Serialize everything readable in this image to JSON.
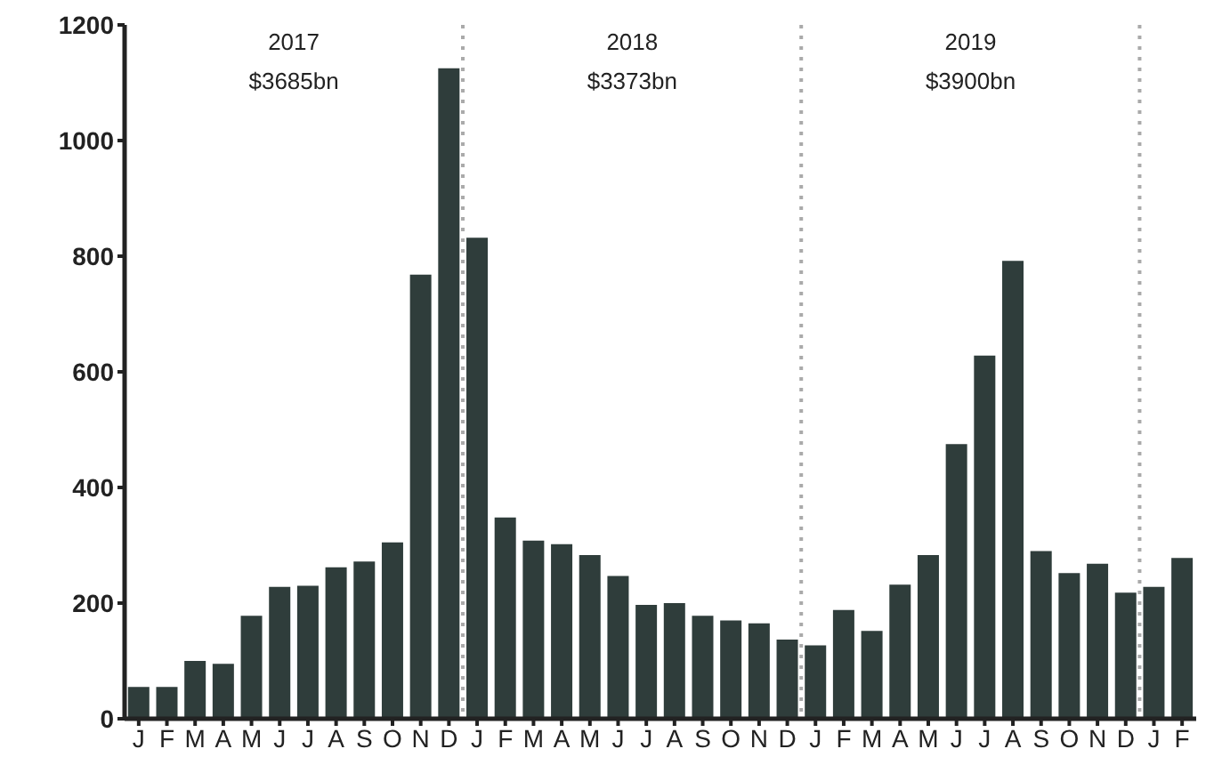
{
  "chart_data": {
    "type": "bar",
    "annotations": [
      "2017",
      "$3685bn",
      "2018",
      "$3373bn",
      "2019",
      "$3900bn"
    ],
    "categories": [
      "J",
      "F",
      "M",
      "A",
      "M",
      "J",
      "J",
      "A",
      "S",
      "O",
      "N",
      "D",
      "J",
      "F",
      "M",
      "A",
      "M",
      "J",
      "J",
      "A",
      "S",
      "O",
      "N",
      "D",
      "J",
      "F",
      "M",
      "A",
      "M",
      "J",
      "J",
      "A",
      "S",
      "O",
      "N",
      "D",
      "J",
      "F"
    ],
    "values": [
      55,
      55,
      100,
      95,
      178,
      228,
      230,
      262,
      272,
      305,
      768,
      1125,
      832,
      348,
      308,
      302,
      283,
      247,
      197,
      200,
      178,
      170,
      165,
      137,
      127,
      188,
      152,
      232,
      283,
      475,
      628,
      792,
      290,
      252,
      268,
      218,
      228,
      278
    ],
    "color": "#2f3d3b",
    "ylim": [
      0,
      1200
    ],
    "yticks": [
      0,
      200,
      400,
      600,
      800,
      1000,
      1200
    ],
    "grid": false,
    "legend": false
  }
}
